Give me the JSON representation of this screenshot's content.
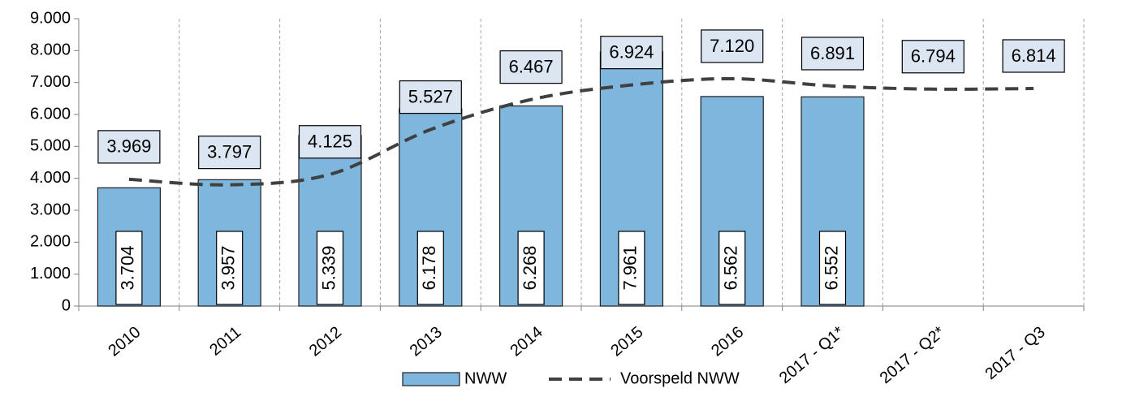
{
  "chart_data": {
    "type": "bar",
    "categories": [
      "2010",
      "2011",
      "2012",
      "2013",
      "2014",
      "2015",
      "2016",
      "2017 - Q1*",
      "2017 - Q2*",
      "2017 - Q3"
    ],
    "series": [
      {
        "name": "NWW",
        "type": "bar",
        "color": "#7eb6de",
        "values": [
          3704,
          3957,
          5339,
          6178,
          6268,
          7961,
          6562,
          6552,
          null,
          null
        ],
        "value_labels": [
          "3.704",
          "3.957",
          "5.339",
          "6.178",
          "6.268",
          "7.961",
          "6.562",
          "6.552",
          null,
          null
        ]
      },
      {
        "name": "Voorspeld NWW",
        "type": "line",
        "color": "#404040",
        "values": [
          3969,
          3797,
          4125,
          5527,
          6467,
          6924,
          7120,
          6891,
          6794,
          6814
        ],
        "value_labels": [
          "3.969",
          "3.797",
          "4.125",
          "5.527",
          "6.467",
          "6.924",
          "7.120",
          "6.891",
          "6.794",
          "6.814"
        ]
      }
    ],
    "ylim": [
      0,
      9000
    ],
    "yticks": [
      0,
      {
        "value": 1000,
        "label": "1.000"
      },
      {
        "value": 2000,
        "label": "2.000"
      },
      {
        "value": 3000,
        "label": "3.000"
      },
      {
        "value": 4000,
        "label": "4.000"
      },
      {
        "value": 5000,
        "label": "5.000"
      },
      {
        "value": 6000,
        "label": "6.000"
      },
      {
        "value": 7000,
        "label": "7.000"
      },
      {
        "value": 8000,
        "label": "8.000"
      },
      {
        "value": 9000,
        "label": "9.000"
      }
    ],
    "grid": true,
    "legend": "bottom"
  }
}
